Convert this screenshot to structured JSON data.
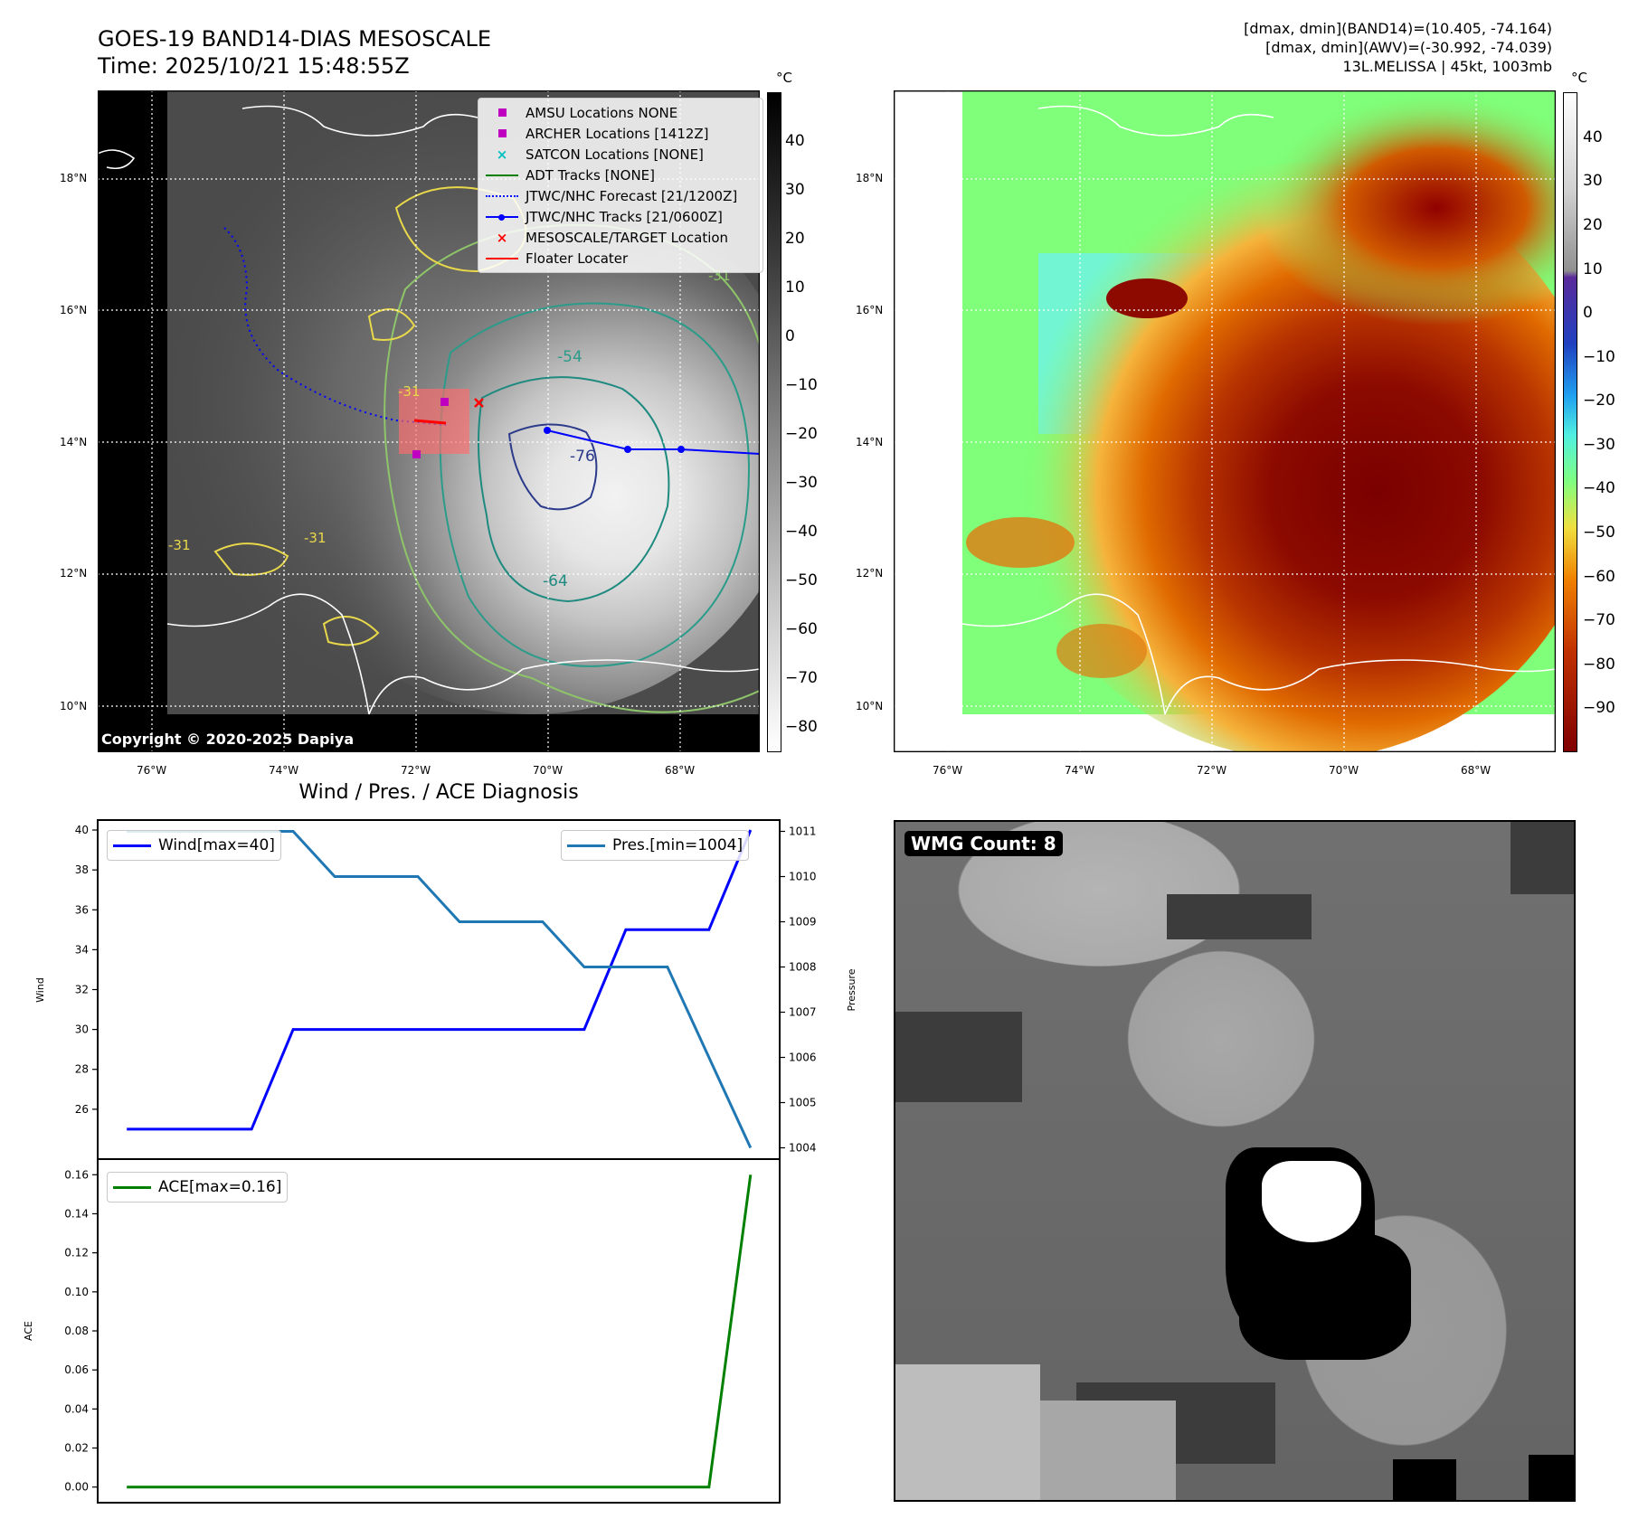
{
  "header": {
    "title": "GOES-19 BAND14-DIAS MESOSCALE",
    "time": "Time: 2025/10/21 15:48:55Z",
    "stats_band14": "[dmax, dmin](BAND14)=(10.405, -74.164)",
    "stats_awv": "[dmax, dmin](AWV)=(-30.992, -74.039)",
    "storm": "13L.MELISSA | 45kt, 1003mb"
  },
  "maps": {
    "lat_labels": [
      "18°N",
      "16°N",
      "14°N",
      "12°N",
      "10°N"
    ],
    "lon_labels": [
      "76°W",
      "74°W",
      "72°W",
      "70°W",
      "68°W"
    ],
    "unit": "°C",
    "copyright": "Copyright © 2020-2025 Dapiya",
    "ir_colorbar_ticks": [
      "40",
      "30",
      "20",
      "10",
      "0",
      "−10",
      "−20",
      "−30",
      "−40",
      "−50",
      "−60",
      "−70",
      "−80"
    ],
    "awv_colorbar_ticks": [
      "40",
      "30",
      "20",
      "10",
      "0",
      "−10",
      "−20",
      "−30",
      "−40",
      "−50",
      "−60",
      "−70",
      "−80",
      "−90"
    ],
    "contour_labels": [
      "-54",
      "-76",
      "-64",
      "-31",
      "-31",
      "-31",
      "-31"
    ],
    "legend": [
      {
        "label": "AMSU Locations NONE",
        "color": "#c000c0",
        "symbol": "square"
      },
      {
        "label": "ARCHER Locations [1412Z]",
        "color": "#c000c0",
        "symbol": "square"
      },
      {
        "label": "SATCON Locations [NONE]",
        "color": "#00bfbf",
        "symbol": "x"
      },
      {
        "label": "ADT Tracks [NONE]",
        "color": "#008000",
        "symbol": "line"
      },
      {
        "label": "JTWC/NHC Forecast [21/1200Z]",
        "color": "#0000ff",
        "symbol": "dotted"
      },
      {
        "label": "JTWC/NHC Tracks [21/0600Z]",
        "color": "#0000ff",
        "symbol": "line-dot"
      },
      {
        "label": "MESOSCALE/TARGET Location",
        "color": "#ff0000",
        "symbol": "x"
      },
      {
        "label": "Floater Locater",
        "color": "#ff0000",
        "symbol": "line"
      }
    ]
  },
  "wmg": {
    "badge": "WMG Count: 8"
  },
  "chart_data": [
    {
      "type": "line",
      "title": "Wind / Pres. / ACE Diagnosis",
      "x": [
        0,
        1,
        2,
        3,
        4,
        5,
        6,
        7,
        8,
        9,
        10,
        11,
        12,
        13,
        14,
        15
      ],
      "series": [
        {
          "name": "Wind",
          "legend": "Wind[max=40]",
          "axis": "left",
          "color": "#0000ff",
          "values": [
            25,
            25,
            25,
            25,
            30,
            30,
            30,
            30,
            30,
            30,
            30,
            30,
            35,
            35,
            35,
            40
          ]
        },
        {
          "name": "Pressure",
          "legend": "Pres.[min=1004]",
          "axis": "right",
          "color": "#1f77b4",
          "values": [
            1011,
            1011,
            1011,
            1011,
            1011,
            1010,
            1010,
            1010,
            1009,
            1009,
            1009,
            1008,
            1008,
            1008,
            1006,
            1004
          ]
        }
      ],
      "ylabel": "Wind",
      "ylabel_right": "Pressure",
      "ylim": [
        23.5,
        40.5
      ],
      "ylim_right": [
        1003.75,
        1011.25
      ],
      "yticks": [
        26,
        28,
        30,
        32,
        34,
        36,
        38,
        40
      ],
      "yticks_right": [
        1004,
        1005,
        1006,
        1007,
        1008,
        1009,
        1010,
        1011
      ],
      "legend_position": "top-left / top-right"
    },
    {
      "type": "line",
      "title": "",
      "x": [
        0,
        1,
        2,
        3,
        4,
        5,
        6,
        7,
        8,
        9,
        10,
        11,
        12,
        13,
        14,
        15
      ],
      "series": [
        {
          "name": "ACE",
          "legend": "ACE[max=0.16]",
          "color": "#008000",
          "values": [
            0,
            0,
            0,
            0,
            0,
            0,
            0,
            0,
            0,
            0,
            0,
            0,
            0,
            0,
            0,
            0.16
          ]
        }
      ],
      "ylabel": "ACE",
      "ylim": [
        -0.008,
        0.168
      ],
      "yticks": [
        "0.00",
        "0.02",
        "0.04",
        "0.06",
        "0.08",
        "0.10",
        "0.12",
        "0.14",
        "0.16"
      ],
      "legend_position": "top-left"
    }
  ]
}
